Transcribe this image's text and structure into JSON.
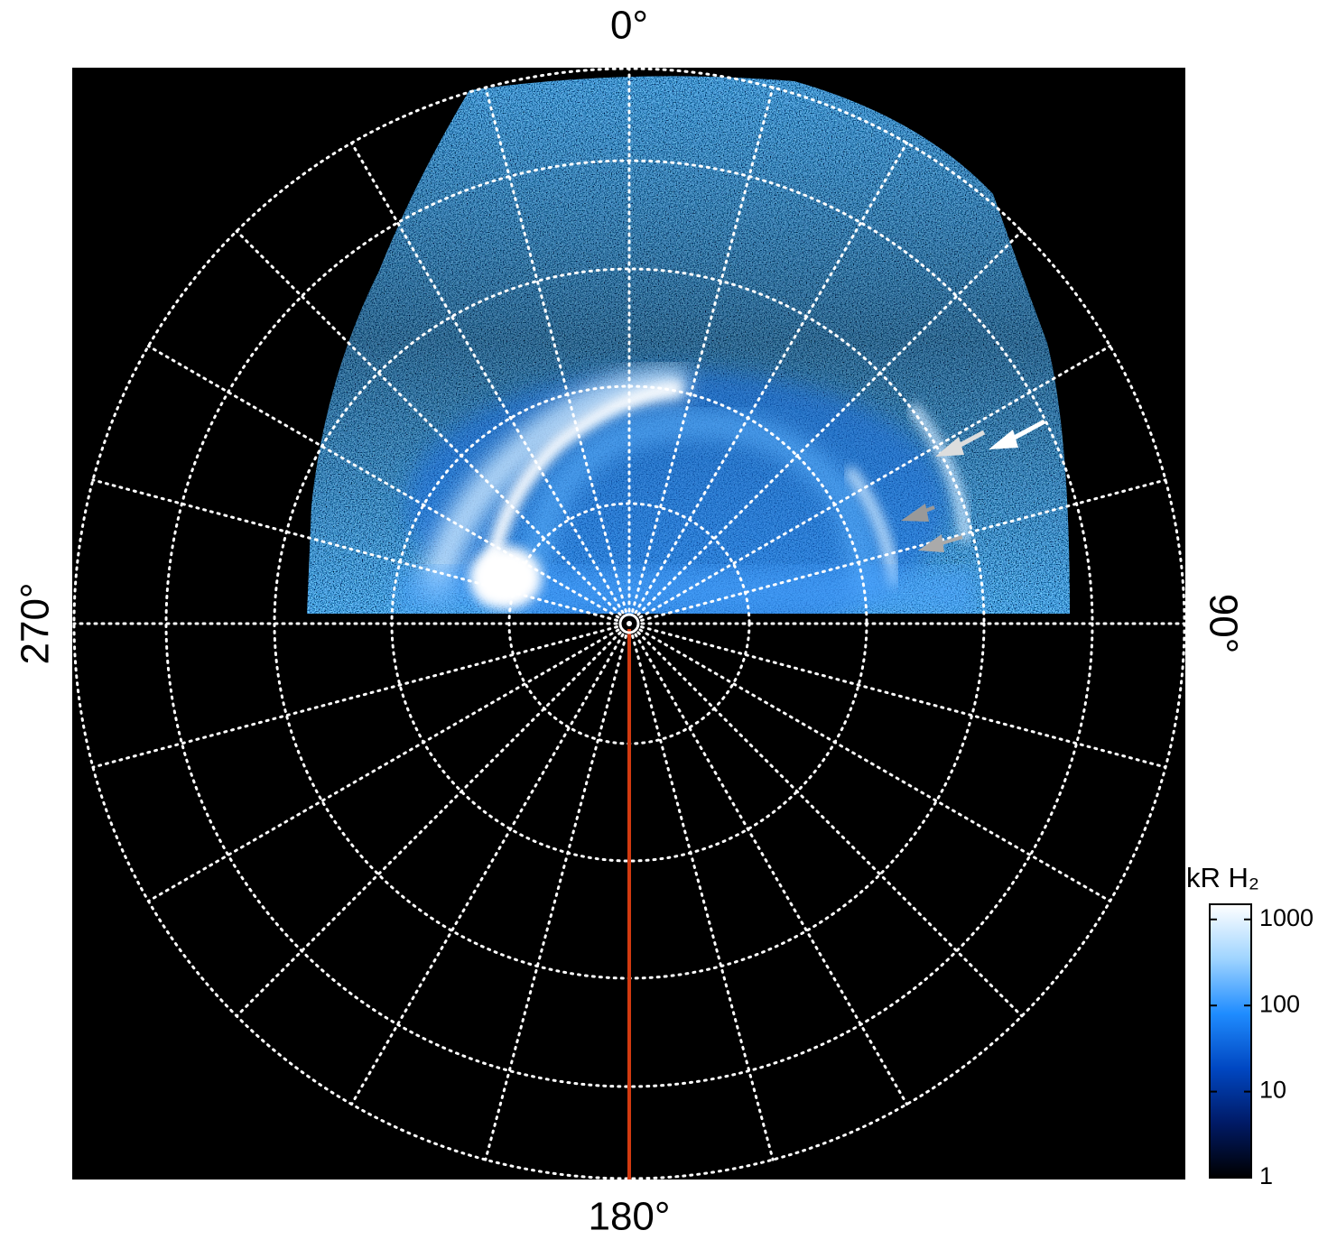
{
  "chart_data": {
    "type": "polar_image",
    "angle_ticks": [
      {
        "value": 0,
        "label": "0°"
      },
      {
        "value": 90,
        "label": "90°"
      },
      {
        "value": 180,
        "label": "180°"
      },
      {
        "value": 270,
        "label": "270°"
      }
    ],
    "colorbar": {
      "label": "kR H₂",
      "lim": [
        1,
        1500
      ],
      "ticks": [
        1,
        10,
        100,
        1000
      ],
      "log": true,
      "colors": [
        "#000000",
        "#001a66",
        "#0047c2",
        "#1f8cff",
        "#9fd4ff",
        "#ffffff"
      ]
    }
  }
}
